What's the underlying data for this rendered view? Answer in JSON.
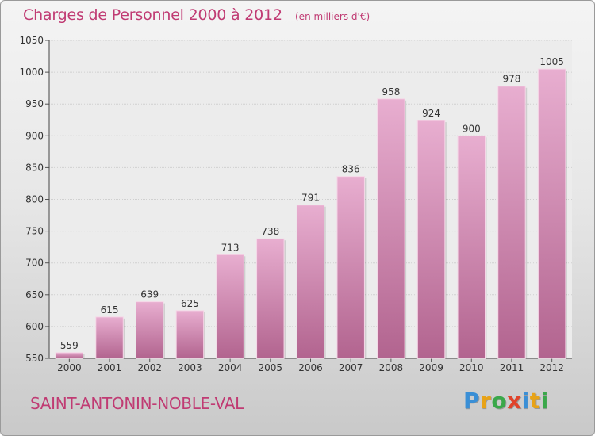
{
  "header": {
    "title": "Charges de Personnel 2000 à 2012",
    "unit_note": "(en milliers d'€)"
  },
  "footer": {
    "commune": "SAINT-ANTONIN-NOBLE-VAL",
    "logo_letters": [
      "P",
      "r",
      "o",
      "x",
      "i",
      "t",
      "i"
    ],
    "logo_colors": [
      "#3a8fd6",
      "#e8a317",
      "#3aa84a",
      "#e0432b",
      "#3a8fd6",
      "#e8a317",
      "#3aa84a"
    ]
  },
  "colors": {
    "accent": "#c03b73",
    "bar_top": "#e8aed0",
    "bar_bottom": "#b2648f"
  },
  "chart_data": {
    "type": "bar",
    "title": "Charges de Personnel 2000 à 2012",
    "subtitle": "(en milliers d'€)",
    "categories": [
      "2000",
      "2001",
      "2002",
      "2003",
      "2004",
      "2005",
      "2006",
      "2007",
      "2008",
      "2009",
      "2010",
      "2011",
      "2012"
    ],
    "values": [
      559,
      615,
      639,
      625,
      713,
      738,
      791,
      836,
      958,
      924,
      900,
      978,
      1005
    ],
    "ylim": [
      550,
      1050
    ],
    "yticks": [
      550,
      600,
      650,
      700,
      750,
      800,
      850,
      900,
      950,
      1000,
      1050
    ],
    "grid": true,
    "legend": "none"
  }
}
